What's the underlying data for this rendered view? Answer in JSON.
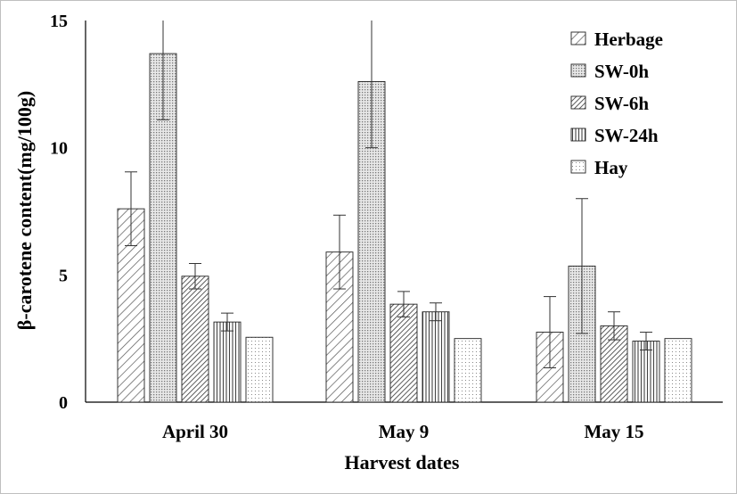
{
  "chart_data": {
    "type": "bar",
    "xlabel": "Harvest dates",
    "ylabel": "β-carotene content(mg/100g)",
    "ylim": [
      0,
      15
    ],
    "yticks": [
      "0",
      "5",
      "10",
      "15"
    ],
    "categories": [
      "April 30",
      "May 9",
      "May 15"
    ],
    "series": [
      {
        "name": "Herbage",
        "values": [
          7.6,
          5.9,
          2.75
        ],
        "errors": [
          1.45,
          1.45,
          1.4
        ],
        "pattern": "diag-wide"
      },
      {
        "name": "SW-0h",
        "values": [
          13.7,
          12.6,
          5.35
        ],
        "errors": [
          2.6,
          2.6,
          2.65
        ],
        "pattern": "dots-dense"
      },
      {
        "name": "SW-6h",
        "values": [
          4.95,
          3.85,
          3.0
        ],
        "errors": [
          0.5,
          0.5,
          0.55
        ],
        "pattern": "diag-dense"
      },
      {
        "name": "SW-24h",
        "values": [
          3.15,
          3.55,
          2.4
        ],
        "errors": [
          0.35,
          0.35,
          0.35
        ],
        "pattern": "vertical"
      },
      {
        "name": "Hay",
        "values": [
          2.55,
          2.5,
          2.5
        ],
        "errors": [
          0,
          0,
          0
        ],
        "pattern": "dots-sparse"
      }
    ],
    "legend_position": "top-right",
    "grid": false
  }
}
